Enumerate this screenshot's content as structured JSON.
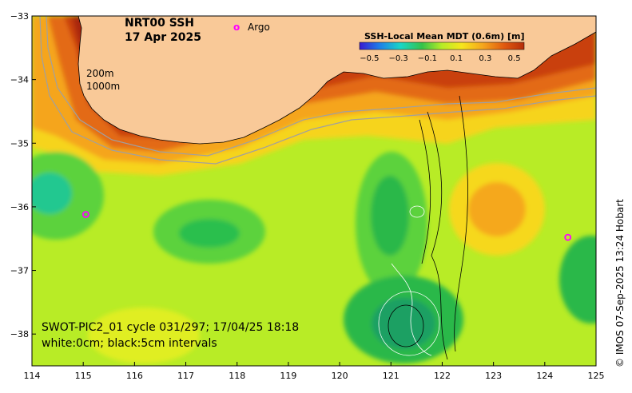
{
  "title": {
    "line1": "NRT00 SSH",
    "line2": "17 Apr 2025"
  },
  "argo_legend": {
    "symbol": "o",
    "label": "Argo",
    "color": "#ff00ff"
  },
  "contour_legend": {
    "line1": "200m",
    "line2": "1000m"
  },
  "colorbar": {
    "title": "SSH-Local Mean MDT (0.6m) [m]",
    "ticks": [
      "−0.5",
      "−0.3",
      "−0.1",
      "0.1",
      "0.3",
      "0.5"
    ],
    "stops": [
      "#3a1ad0",
      "#1f7de8",
      "#19d6c6",
      "#35c24a",
      "#b6ec26",
      "#f6e61c",
      "#f5a51d",
      "#e0590f",
      "#b52d0a"
    ]
  },
  "swot": {
    "line1": "SWOT-PIC2_01 cycle 031/297; 17/04/25 18:18",
    "line2": "white:0cm; black:5cm intervals"
  },
  "credit": "© IMOS 07-Sep-2025 13:24 Hobart",
  "axes": {
    "x_ticks": [
      "114",
      "115",
      "116",
      "117",
      "118",
      "119",
      "120",
      "121",
      "122",
      "123",
      "124",
      "125"
    ],
    "y_ticks": [
      "−33",
      "−34",
      "−35",
      "−36",
      "−37",
      "−38"
    ],
    "xlim": [
      114,
      125
    ],
    "ylim": [
      -38.5,
      -33
    ]
  },
  "argo_floats": [
    {
      "lon": 115.05,
      "lat": -36.12
    },
    {
      "lon": 124.45,
      "lat": -36.48
    }
  ],
  "colors": {
    "land": "#f9c998",
    "coast": "#000000",
    "bathy": "#a0a0a0"
  }
}
